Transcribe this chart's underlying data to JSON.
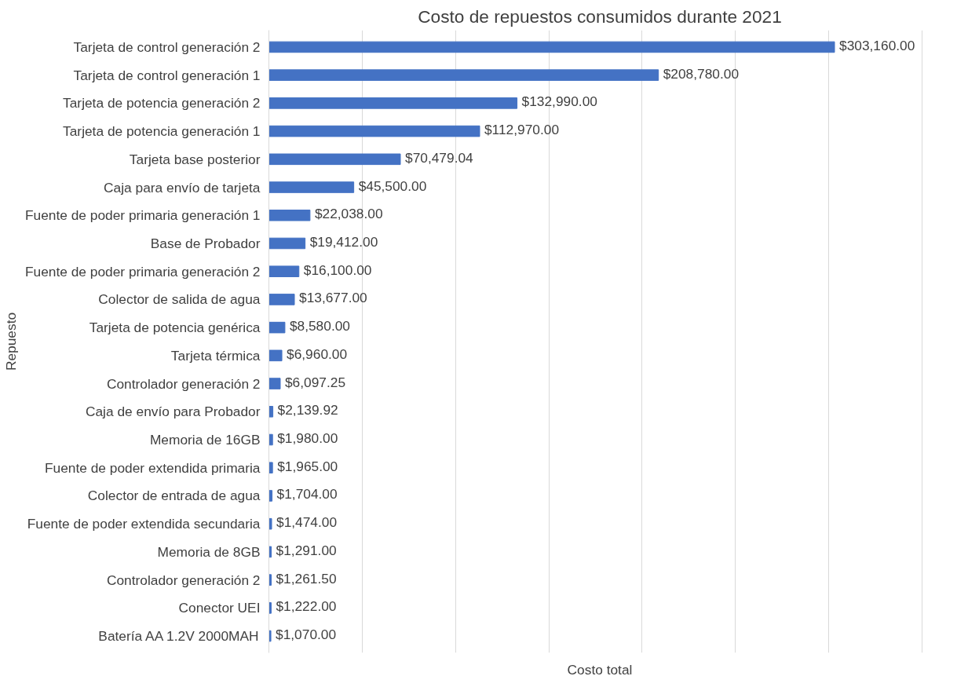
{
  "chart_data": {
    "type": "bar",
    "orientation": "horizontal",
    "title": "Costo de repuestos consumidos durante 2021",
    "xlabel": "Costo total",
    "ylabel": "Repuesto",
    "categories": [
      "Tarjeta de control generación 2",
      "Tarjeta de control generación 1",
      "Tarjeta de potencia generación 2",
      "Tarjeta de potencia generación 1",
      "Tarjeta base posterior",
      "Caja para envío de tarjeta",
      "Fuente de poder primaria generación 1",
      "Base de Probador",
      "Fuente de poder primaria generación 2",
      "Colector de salida de agua",
      "Tarjeta de potencia genérica",
      "Tarjeta térmica",
      "Controlador generación 2",
      "Caja de envío para Probador",
      "Memoria de 16GB",
      "Fuente de poder extendida primaria",
      "Colector de entrada de agua",
      "Fuente de poder extendida secundaria",
      "Memoria de 8GB",
      "Controlador generación 2",
      "Conector UEI",
      "Batería AA 1.2V 2000MAH"
    ],
    "values": [
      303160.0,
      208780.0,
      132990.0,
      112970.0,
      70479.04,
      45500.0,
      22038.0,
      19412.0,
      16100.0,
      13677.0,
      8580.0,
      6960.0,
      6097.25,
      2139.92,
      1980.0,
      1965.0,
      1704.0,
      1474.0,
      1291.0,
      1261.5,
      1222.0,
      1070.0
    ],
    "value_labels": [
      "$303,160.00",
      "$208,780.00",
      "$132,990.00",
      "$112,970.00",
      "$70,479.04",
      "$45,500.00",
      "$22,038.00",
      "$19,412.00",
      "$16,100.00",
      "$13,677.00",
      "$8,580.00",
      "$6,960.00",
      "$6,097.25",
      "$2,139.92",
      "$1,980.00",
      "$1,965.00",
      "$1,704.00",
      "$1,474.00",
      "$1,291.00",
      "$1,261.50",
      "$1,222.00",
      "$1,070.00"
    ],
    "color": "#4472c4",
    "tick_labels": "y",
    "grid": "x"
  }
}
